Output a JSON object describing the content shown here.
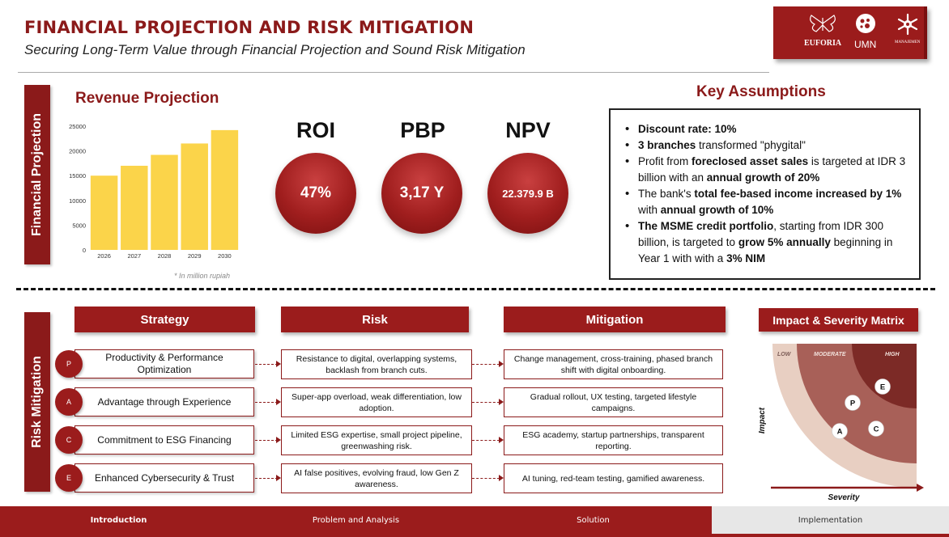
{
  "header": {
    "title": "FINANCIAL PROJECTION AND RISK MITIGATION",
    "subtitle": "Securing Long-Term Value through Financial Projection and Sound Risk Mitigation"
  },
  "logos": [
    {
      "name": "euforia-logo",
      "label": "EUFORIA"
    },
    {
      "name": "umn-logo",
      "label": "UMN"
    },
    {
      "name": "manajemen-logo",
      "label": "MANAJEMEN"
    }
  ],
  "financial_section": {
    "side_label": "Financial Projection",
    "revenue_title": "Revenue Projection",
    "note": "* In million rupiah"
  },
  "chart_data": {
    "type": "bar",
    "categories": [
      "2026",
      "2027",
      "2028",
      "2029",
      "2030"
    ],
    "values": [
      15000,
      17000,
      19200,
      21500,
      24200
    ],
    "ylim": [
      0,
      25000
    ],
    "yticks": [
      0,
      5000,
      10000,
      15000,
      20000,
      25000
    ],
    "bar_color": "#fbd44a",
    "grid": false
  },
  "metrics": [
    {
      "label": "ROI",
      "value": "47%"
    },
    {
      "label": "PBP",
      "value": "3,17 Y"
    },
    {
      "label": "NPV",
      "value": "22.379.9 B"
    }
  ],
  "assumptions": {
    "title": "Key Assumptions",
    "items": [
      [
        {
          "t": "Discount rate: 10%",
          "b": true
        }
      ],
      [
        {
          "t": "3 branches",
          "b": true
        },
        {
          "t": " transformed \"phygital\"",
          "b": false
        }
      ],
      [
        {
          "t": "Profit from ",
          "b": false
        },
        {
          "t": "foreclosed asset sales",
          "b": true
        },
        {
          "t": " is targeted at IDR 3 billion with an ",
          "b": false
        },
        {
          "t": "annual growth of 20%",
          "b": true
        }
      ],
      [
        {
          "t": "The bank's ",
          "b": false
        },
        {
          "t": "total fee-based income increased by 1%",
          "b": true
        },
        {
          "t": " with ",
          "b": false
        },
        {
          "t": "annual growth of 10%",
          "b": true
        }
      ],
      [
        {
          "t": "The MSME credit portfolio",
          "b": true
        },
        {
          "t": ", starting from IDR 300 billion, is targeted to ",
          "b": false
        },
        {
          "t": "grow 5% annually",
          "b": true
        },
        {
          "t": " beginning in Year 1 with with a ",
          "b": false
        },
        {
          "t": "3% NIM",
          "b": true
        }
      ]
    ]
  },
  "risk_section": {
    "side_label": "Risk Mitigation",
    "headers": {
      "strategy": "Strategy",
      "risk": "Risk",
      "mitigation": "Mitigation",
      "matrix": "Impact & Severity Matrix"
    },
    "rows": [
      {
        "letter": "P",
        "strategy": "Productivity & Performance Optimization",
        "risk": "Resistance to digital, overlapping systems, backlash from branch cuts.",
        "mitigation": "Change management, cross-training, phased branch shift with digital onboarding."
      },
      {
        "letter": "A",
        "strategy": "Advantage through Experience",
        "risk": "Super-app overload, weak differentiation, low adoption.",
        "mitigation": "Gradual rollout, UX testing, targeted lifestyle campaigns."
      },
      {
        "letter": "C",
        "strategy": "Commitment to ESG Financing",
        "risk": "Limited ESG expertise, small project pipeline, greenwashing risk.",
        "mitigation": "ESG academy, startup partnerships, transparent reporting."
      },
      {
        "letter": "E",
        "strategy": "Enhanced Cybersecurity & Trust",
        "risk": "AI false positives, evolving fraud, low Gen Z awareness.",
        "mitigation": "AI tuning, red-team testing, gamified awareness."
      }
    ],
    "matrix": {
      "zones": [
        "LOW",
        "MODERATE",
        "HIGH"
      ],
      "x_label": "Severity",
      "y_label": "Impact",
      "points": [
        "E",
        "P",
        "A",
        "C"
      ]
    }
  },
  "footer": {
    "tabs": [
      "Introduction",
      "Problem and Analysis",
      "Solution",
      "Implementation"
    ]
  },
  "colors": {
    "brand": "#9b1c1c",
    "bar": "#fbd44a",
    "matrix_low": "#e8cfc2",
    "matrix_moderate": "#a86058",
    "matrix_high": "#7c2a26"
  }
}
